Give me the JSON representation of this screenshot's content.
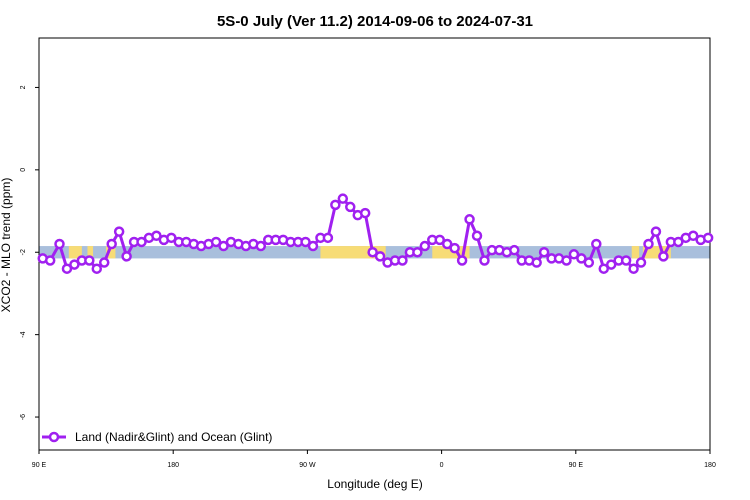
{
  "chart_data": {
    "type": "line",
    "title": "5S-0 July (Ver 11.2)   2014-09-06 to 2024-07-31",
    "xlabel": "Longitude (deg E)",
    "ylabel": "XCO2 - MLO trend (ppm)",
    "xlim": [
      90,
      450
    ],
    "ylim": [
      -6.8,
      3.2
    ],
    "x_tick_values": [
      90,
      162,
      234,
      306,
      378,
      450
    ],
    "x_tick_labels": [
      "90 E",
      "180",
      "90 W",
      "0",
      "90 E",
      "180"
    ],
    "y_ticks": [
      -6,
      -4,
      -2,
      0,
      2
    ],
    "y_tick_labels": [
      "-6",
      "-4",
      "-2",
      "0",
      "2"
    ],
    "grid": false,
    "legend_position": "bottom-left",
    "band": {
      "y_range": [
        -2.15,
        -1.85
      ],
      "base_color": "#a9bfdc",
      "land_color": "#f7dc76",
      "land_segments": [
        [
          106,
          113
        ],
        [
          116,
          119
        ],
        [
          126,
          131
        ],
        [
          241,
          276
        ],
        [
          301,
          321
        ],
        [
          408,
          412
        ],
        [
          414,
          423
        ],
        [
          424,
          429
        ]
      ]
    },
    "series": [
      {
        "name": "Land (Nadir&Glint) and Ocean (Glint)",
        "color": "#a020f0",
        "x": [
          92,
          96,
          101,
          105,
          109,
          113,
          117,
          121,
          125,
          129,
          133,
          137,
          141,
          145,
          149,
          153,
          157,
          161,
          165,
          169,
          173,
          177,
          181,
          185,
          189,
          193,
          197,
          201,
          205,
          209,
          213,
          217,
          221,
          225,
          229,
          233,
          237,
          241,
          245,
          249,
          253,
          257,
          261,
          265,
          269,
          273,
          277,
          281,
          285,
          289,
          293,
          297,
          301,
          305,
          309,
          313,
          317,
          321,
          325,
          329,
          333,
          337,
          341,
          345,
          349,
          353,
          357,
          361,
          365,
          369,
          373,
          377,
          381,
          385,
          389,
          393,
          397,
          401,
          405,
          409,
          413,
          417,
          421,
          425,
          429,
          433,
          437,
          441,
          445,
          449
        ],
        "y": [
          -2.15,
          -2.2,
          -1.8,
          -2.4,
          -2.3,
          -2.2,
          -2.2,
          -2.4,
          -2.25,
          -1.8,
          -1.5,
          -2.1,
          -1.75,
          -1.75,
          -1.65,
          -1.6,
          -1.7,
          -1.65,
          -1.75,
          -1.75,
          -1.8,
          -1.85,
          -1.8,
          -1.75,
          -1.85,
          -1.75,
          -1.8,
          -1.85,
          -1.8,
          -1.85,
          -1.7,
          -1.7,
          -1.7,
          -1.75,
          -1.75,
          -1.75,
          -1.85,
          -1.65,
          -1.65,
          -0.85,
          -0.7,
          -0.9,
          -1.1,
          -1.05,
          -2.0,
          -2.1,
          -2.25,
          -2.2,
          -2.2,
          -2.0,
          -2.0,
          -1.85,
          -1.7,
          -1.7,
          -1.8,
          -1.9,
          -2.2,
          -1.2,
          -1.6,
          -2.2,
          -1.95,
          -1.95,
          -2.0,
          -1.95,
          -2.2,
          -2.2,
          -2.25,
          -2.0,
          -2.15,
          -2.15,
          -2.2,
          -2.05,
          -2.15,
          -2.25,
          -1.8,
          -2.4,
          -2.3,
          -2.2,
          -2.2,
          -2.4,
          -2.25,
          -1.8,
          -1.5,
          -2.1,
          -1.75,
          -1.75,
          -1.65,
          -1.6,
          -1.7,
          -1.65
        ]
      }
    ]
  }
}
